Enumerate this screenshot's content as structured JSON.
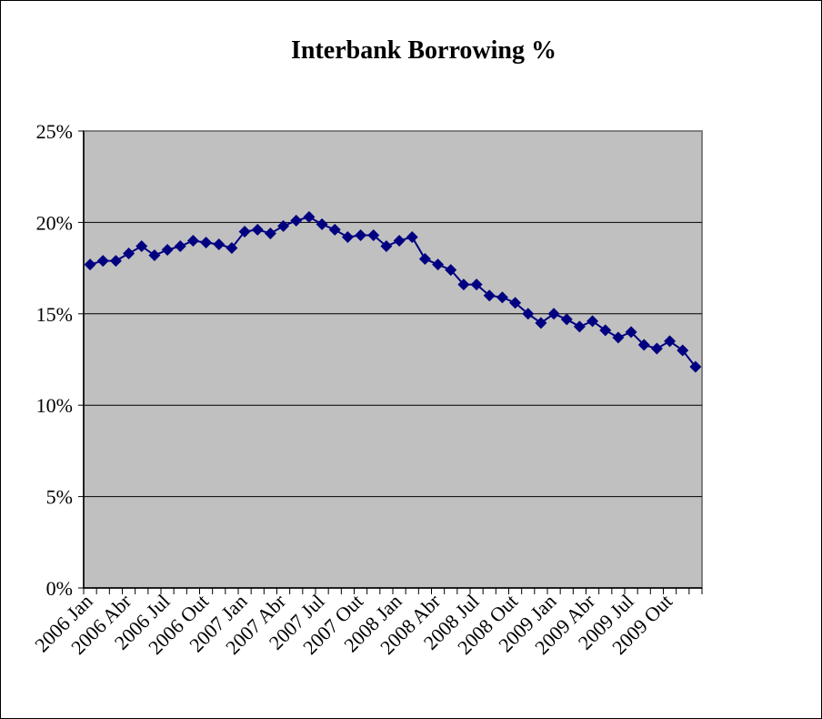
{
  "chart_data": {
    "type": "line",
    "title": "Interbank Borrowing %",
    "xlabel": "",
    "ylabel": "",
    "ylim": [
      0,
      25
    ],
    "y_ticks": [
      "0%",
      "5%",
      "10%",
      "15%",
      "20%",
      "25%"
    ],
    "grid": true,
    "legend": "none",
    "x_tick_labels": [
      "2006 Jan",
      "2006 Abr",
      "2006 Jul",
      "2006 Out",
      "2007 Jan",
      "2007 Abr",
      "2007 Jul",
      "2007 Out",
      "2008 Jan",
      "2008 Abr",
      "2008 Jul",
      "2008 Out",
      "2009 Jan",
      "2009 Abr",
      "2009 Jul",
      "2009 Out"
    ],
    "x": [
      "2006 Jan",
      "2006 Fev",
      "2006 Mar",
      "2006 Abr",
      "2006 Mai",
      "2006 Jun",
      "2006 Jul",
      "2006 Ago",
      "2006 Set",
      "2006 Out",
      "2006 Nov",
      "2006 Dez",
      "2007 Jan",
      "2007 Fev",
      "2007 Mar",
      "2007 Abr",
      "2007 Mai",
      "2007 Jun",
      "2007 Jul",
      "2007 Ago",
      "2007 Set",
      "2007 Out",
      "2007 Nov",
      "2007 Dez",
      "2008 Jan",
      "2008 Fev",
      "2008 Mar",
      "2008 Abr",
      "2008 Mai",
      "2008 Jun",
      "2008 Jul",
      "2008 Ago",
      "2008 Set",
      "2008 Out",
      "2008 Nov",
      "2008 Dez",
      "2009 Jan",
      "2009 Fev",
      "2009 Mar",
      "2009 Abr",
      "2009 Mai",
      "2009 Jun",
      "2009 Jul",
      "2009 Ago",
      "2009 Set",
      "2009 Out",
      "2009 Nov",
      "2009 Dez"
    ],
    "series": [
      {
        "values": [
          17.7,
          17.9,
          17.9,
          18.3,
          18.7,
          18.2,
          18.5,
          18.7,
          19.0,
          18.9,
          18.8,
          18.6,
          19.5,
          19.6,
          19.4,
          19.8,
          20.1,
          20.3,
          19.9,
          19.6,
          19.2,
          19.3,
          19.3,
          18.7,
          19.0,
          19.2,
          18.0,
          17.7,
          17.4,
          16.6,
          16.6,
          16.0,
          15.9,
          15.6,
          15.0,
          14.5,
          15.0,
          14.7,
          14.3,
          14.6,
          14.1,
          13.7,
          14.0,
          13.3,
          13.1,
          13.5,
          13.0,
          12.1
        ],
        "color": "#000080"
      }
    ],
    "colors": {
      "plot_bg": "#c0c0c0",
      "grid": "#000000",
      "series": "#000080"
    }
  }
}
